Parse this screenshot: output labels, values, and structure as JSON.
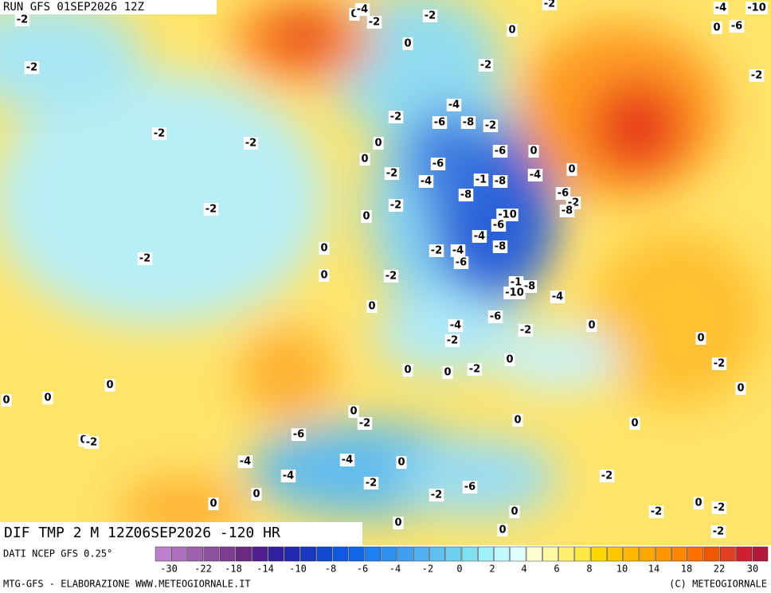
{
  "header": {
    "run": "RUN GFS 01SEP2026 12Z"
  },
  "map_labels": [
    "-2",
    "-2",
    "-2",
    "-2",
    "-2",
    "0",
    "0",
    "-4",
    "-2",
    "0",
    "-2",
    "-4",
    "-10",
    "-6",
    "0",
    "-2",
    "-2",
    "-2",
    "-2",
    "-2",
    "-4",
    "-6",
    "-8",
    "-2",
    "0",
    "0",
    "-2",
    "-6",
    "-6",
    "0",
    "-4",
    "-1",
    "-8",
    "-4",
    "0",
    "-8",
    "-6",
    "-2",
    "-8",
    "-2",
    "0",
    "-10",
    "-6",
    "-4",
    "-8",
    "-2",
    "-4",
    "-6",
    "0",
    "0",
    "-2",
    "-1",
    "-8",
    "-10",
    "-4",
    "0",
    "-4",
    "-6",
    "-2",
    "0",
    "-2",
    "0",
    "-2",
    "0",
    "0",
    "-2",
    "0",
    "0",
    "0",
    "0",
    "0",
    "0",
    "-2",
    "0",
    "0",
    "0",
    "-2",
    "-6",
    "-4",
    "0",
    "-4",
    "-4",
    "-2",
    "-6",
    "-2",
    "0",
    "0",
    "-2",
    "0",
    "-2",
    "0",
    "-2",
    "0",
    "0",
    "-2"
  ],
  "footer": {
    "product": "DIF TMP 2 M 12Z06SEP2026 -120 HR",
    "source": "DATI NCEP GFS 0.25°",
    "credit": "MTG-GFS - ELABORAZIONE WWW.METEOGIORNALE.IT",
    "copyright": "(C) METEOGIORNALE"
  },
  "colorbar": {
    "ticks": [
      -30,
      -22,
      -18,
      -14,
      -10,
      -8,
      -6,
      -4,
      -2,
      0,
      2,
      4,
      6,
      8,
      10,
      14,
      18,
      22,
      30
    ],
    "colors": [
      "#c080d0",
      "#b070c0",
      "#a060b0",
      "#9050a0",
      "#803c90",
      "#6a2a80",
      "#502090",
      "#3020a0",
      "#2028b0",
      "#1838c0",
      "#1048d0",
      "#1058e0",
      "#1068e8",
      "#2080f0",
      "#3090f0",
      "#40a0f0",
      "#50b0f0",
      "#60c0f0",
      "#70d0f0",
      "#80e0f0",
      "#a0f0f8",
      "#c0f8ff",
      "#e0ffff",
      "#ffffd0",
      "#fff8a0",
      "#fff070",
      "#ffe840",
      "#ffd800",
      "#ffc800",
      "#ffb800",
      "#ffa800",
      "#ff9800",
      "#ff8800",
      "#ff7000",
      "#f05800",
      "#e04020",
      "#d02030",
      "#b01838"
    ]
  }
}
